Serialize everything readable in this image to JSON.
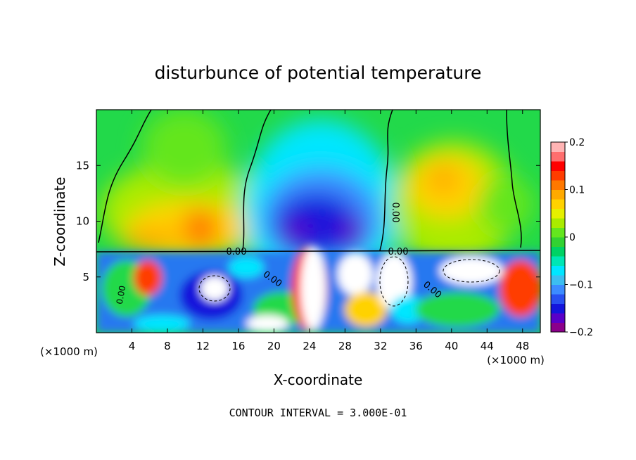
{
  "chart_data": {
    "type": "heatmap",
    "title": "disturbunce of potential temperature",
    "xlabel": "X-coordinate",
    "ylabel": "Z-coordinate",
    "x_unit_left": "(×1000 m)",
    "x_unit_right": "(×1000 m)",
    "xlim": [
      0,
      50
    ],
    "ylim": [
      0,
      20
    ],
    "x_ticks": [
      "4",
      "8",
      "12",
      "16",
      "20",
      "24",
      "28",
      "32",
      "36",
      "40",
      "44",
      "48"
    ],
    "y_ticks": [
      "5",
      "10",
      "15"
    ],
    "colorbar": {
      "range": [
        -0.2,
        0.2
      ],
      "tick_labels": [
        "0.2",
        "0.1",
        "0",
        "−0.1",
        "−0.2"
      ],
      "colors": [
        "#8b008b",
        "#5a00c8",
        "#1414dc",
        "#2850f0",
        "#3c8cff",
        "#3cbef0",
        "#00e6ff",
        "#00e6b4",
        "#00d264",
        "#32d232",
        "#64e61e",
        "#aaeb00",
        "#e6f000",
        "#ffd200",
        "#ffaa00",
        "#ff7800",
        "#ff3c00",
        "#ff0000",
        "#ff6e6e",
        "#ffb4b4"
      ]
    },
    "contour_labels": [
      "0.00",
      "0.00",
      "0.00",
      "0.00",
      "0.00",
      "0.00"
    ],
    "footer": "CONTOUR INTERVAL = 3.000E-01"
  }
}
